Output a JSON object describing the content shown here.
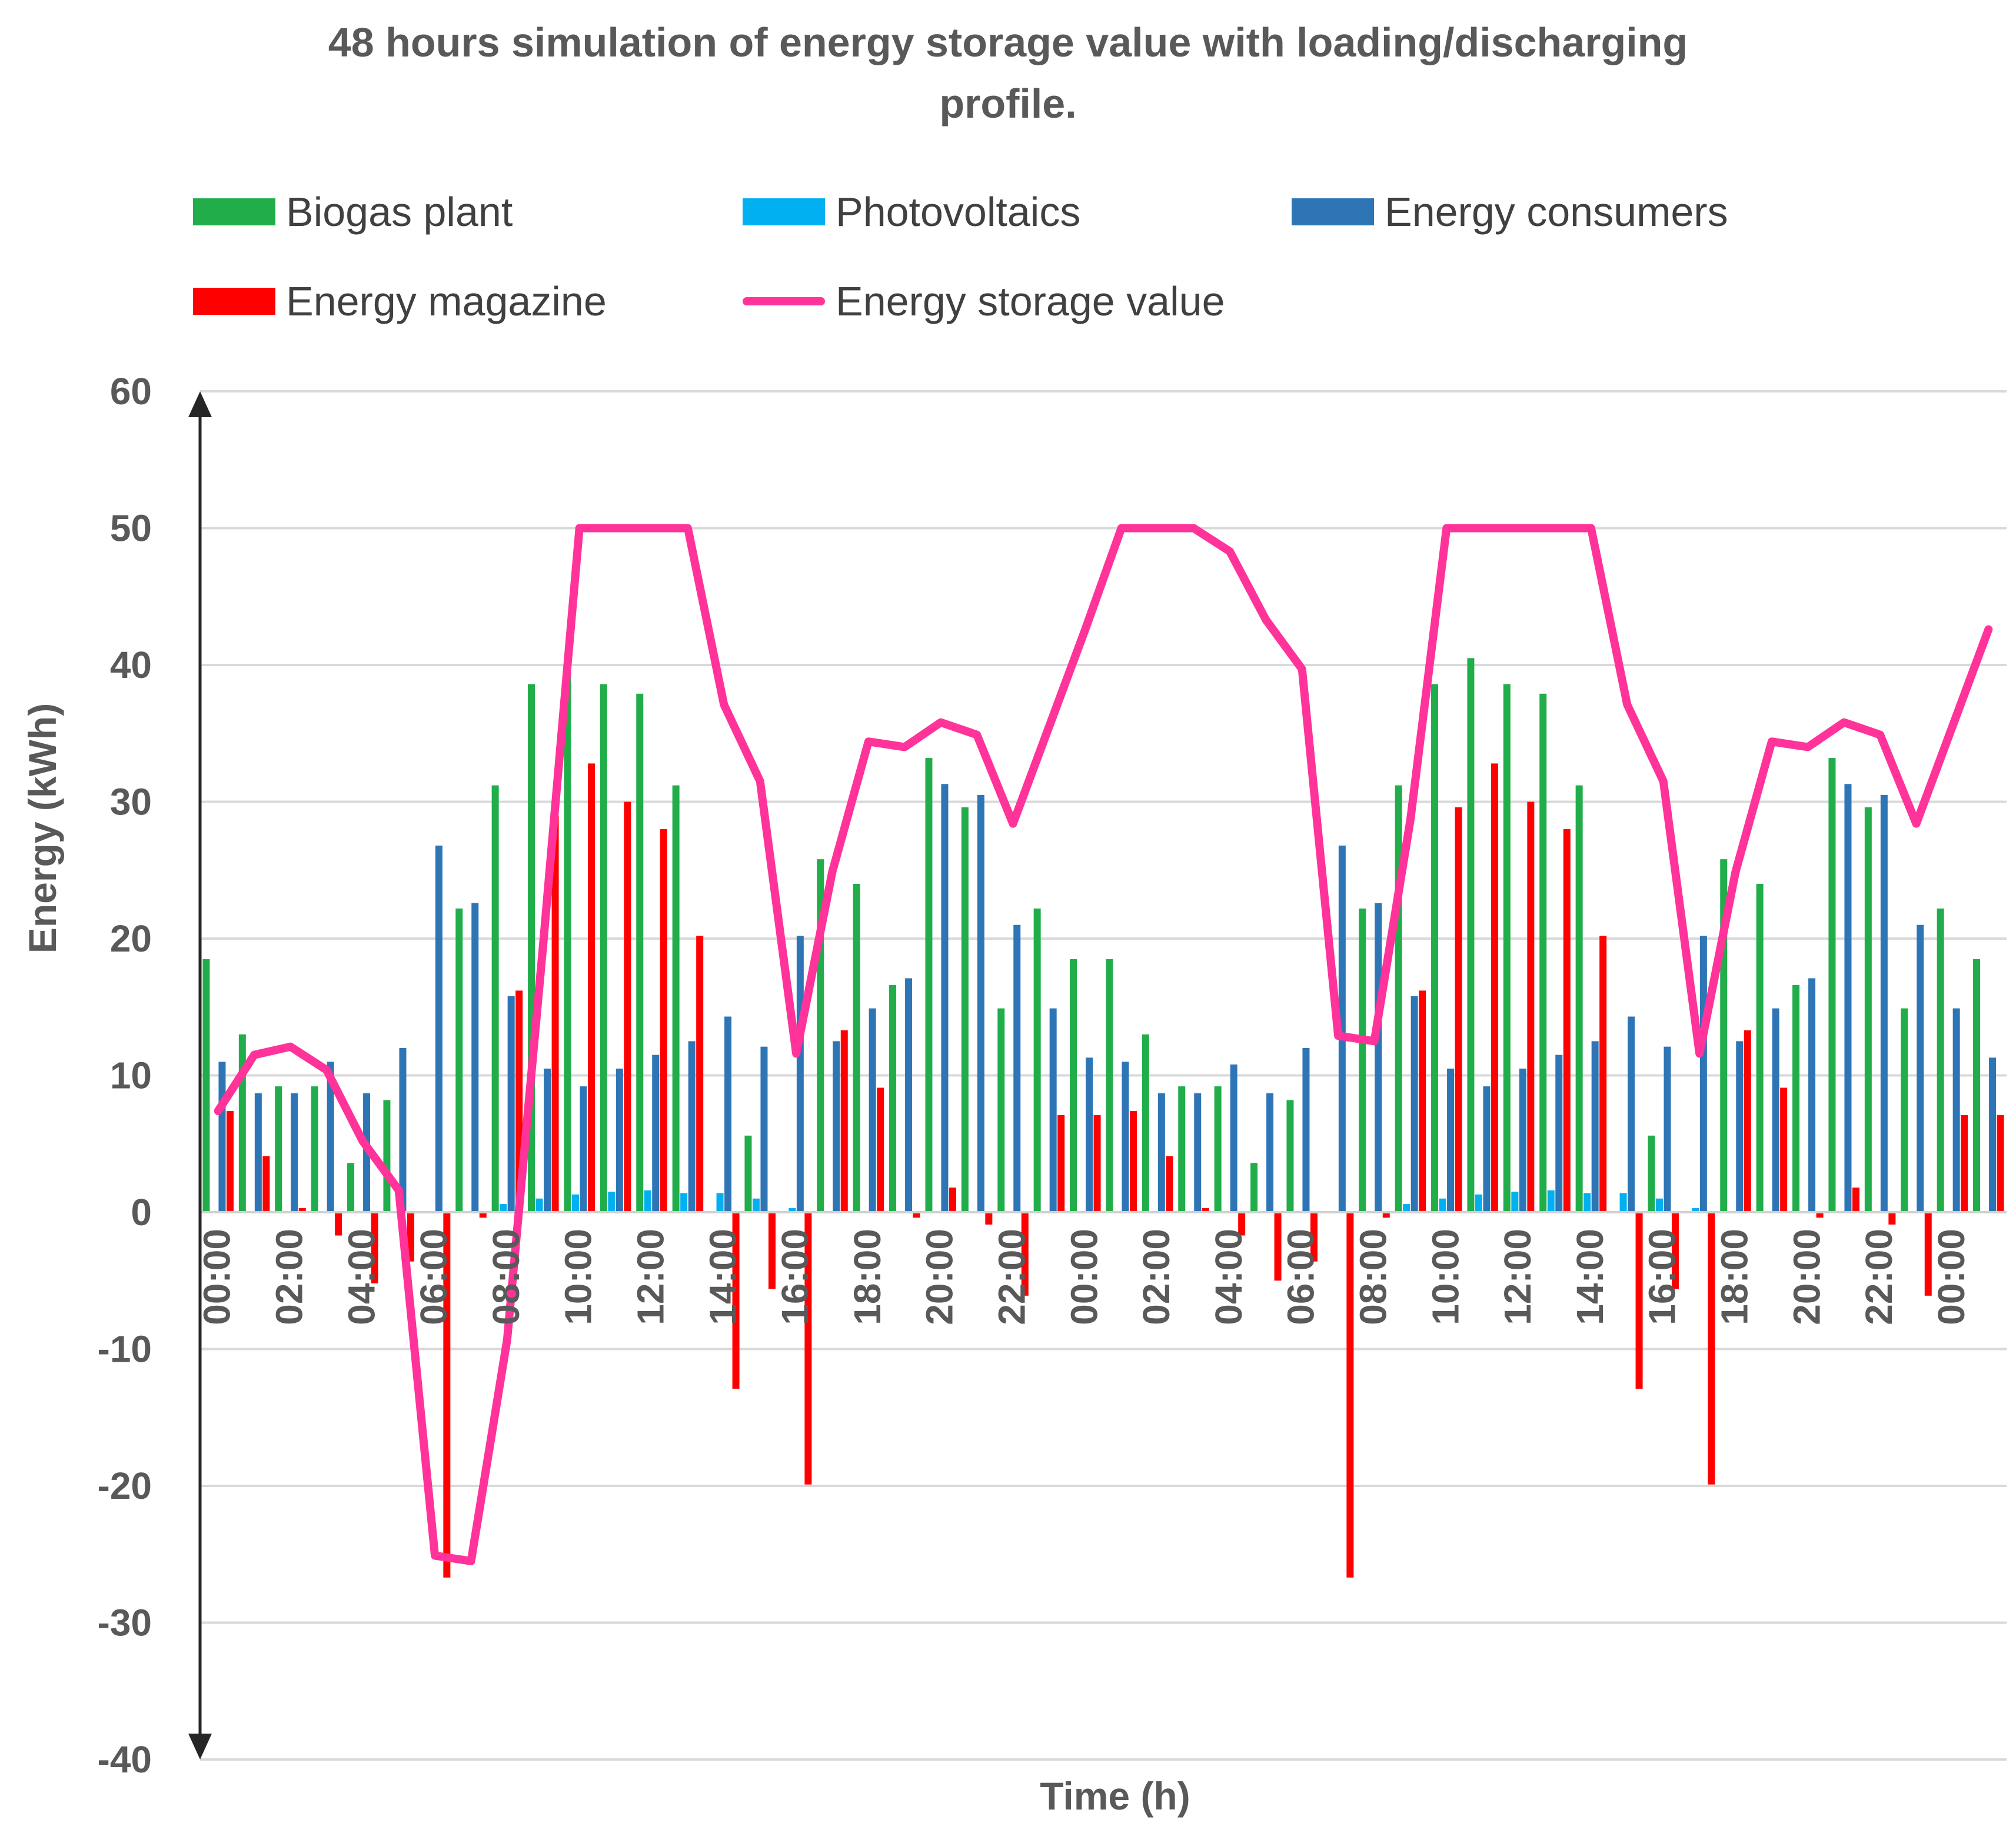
{
  "chart_data": {
    "type": "bar",
    "title_lines": [
      "48 hours simulation of energy storage value with loading/discharging",
      "profile."
    ],
    "xlabel": "Time (h)",
    "ylabel": "Energy (kWh)",
    "ylim": [
      -40,
      60
    ],
    "yticks": [
      -40,
      -30,
      -20,
      -10,
      0,
      10,
      20,
      30,
      40,
      50,
      60
    ],
    "y_tick_labels": [
      "-40",
      "-30",
      "-20",
      "-10",
      "0",
      "10",
      "20",
      "30",
      "40",
      "50",
      "60"
    ],
    "grid": true,
    "legend_position": "top",
    "categories": [
      "00:00",
      "01:00",
      "02:00",
      "03:00",
      "04:00",
      "05:00",
      "06:00",
      "07:00",
      "08:00",
      "09:00",
      "10:00",
      "11:00",
      "12:00",
      "13:00",
      "14:00",
      "15:00",
      "16:00",
      "17:00",
      "18:00",
      "19:00",
      "20:00",
      "21:00",
      "22:00",
      "23:00",
      "00:00",
      "01:00",
      "02:00",
      "03:00",
      "04:00",
      "05:00",
      "06:00",
      "07:00",
      "08:00",
      "09:00",
      "10:00",
      "11:00",
      "12:00",
      "13:00",
      "14:00",
      "15:00",
      "16:00",
      "17:00",
      "18:00",
      "19:00",
      "20:00",
      "21:00",
      "22:00",
      "23:00",
      "00:00",
      "01:00"
    ],
    "x_tick_labels": [
      "00:00",
      "02:00",
      "04:00",
      "06:00",
      "08:00",
      "10:00",
      "12:00",
      "14:00",
      "16:00",
      "18:00",
      "20:00",
      "22:00",
      "00:00",
      "02:00",
      "04:00",
      "06:00",
      "08:00",
      "10:00",
      "12:00",
      "14:00",
      "16:00",
      "18:00",
      "20:00",
      "22:00",
      "00:00"
    ],
    "series": [
      {
        "name": "Biogas plant",
        "kind": "bar",
        "color": "#21ad4a",
        "values": [
          18.5,
          13.0,
          9.2,
          9.2,
          3.6,
          8.2,
          0.0,
          22.2,
          31.2,
          38.6,
          40.2,
          38.6,
          37.9,
          31.2,
          0.0,
          5.6,
          0.0,
          25.8,
          24.0,
          16.6,
          33.2,
          29.6,
          14.9,
          22.2,
          18.5,
          18.5,
          13.0,
          9.2,
          9.2,
          3.6,
          8.2,
          0.0,
          22.2,
          31.2,
          38.6,
          40.5,
          38.6,
          37.9,
          31.2,
          0.0,
          5.6,
          0.0,
          25.8,
          24.0,
          16.6,
          33.2,
          29.6,
          14.9,
          22.2,
          18.5
        ]
      },
      {
        "name": "Photovoltaics",
        "kind": "bar",
        "color": "#00b0f0",
        "values": [
          0,
          0,
          0,
          0,
          0,
          0,
          0,
          0,
          0.6,
          1.0,
          1.3,
          1.5,
          1.6,
          1.4,
          1.4,
          1.0,
          0.3,
          0,
          0,
          0,
          0,
          0,
          0,
          0,
          0,
          0,
          0,
          0,
          0,
          0,
          0,
          0,
          0,
          0.6,
          1.0,
          1.3,
          1.5,
          1.6,
          1.4,
          1.4,
          1.0,
          0.3,
          0,
          0,
          0,
          0,
          0,
          0,
          0,
          0
        ]
      },
      {
        "name": "Energy consumers",
        "kind": "bar",
        "color": "#2e75b6",
        "values": [
          11.0,
          8.7,
          8.7,
          11.0,
          8.7,
          12.0,
          26.8,
          22.6,
          15.8,
          10.5,
          9.2,
          10.5,
          11.5,
          12.5,
          14.3,
          12.1,
          20.2,
          12.5,
          14.9,
          17.1,
          31.3,
          30.5,
          21.0,
          14.9,
          11.3,
          11.0,
          8.7,
          8.7,
          10.8,
          8.7,
          12.0,
          26.8,
          22.6,
          15.8,
          10.5,
          9.2,
          10.5,
          11.5,
          12.5,
          14.3,
          12.1,
          20.2,
          12.5,
          14.9,
          17.1,
          31.3,
          30.5,
          21.0,
          14.9,
          11.3
        ]
      },
      {
        "name": "Energy magazine",
        "kind": "bar",
        "color": "#ff0000",
        "values": [
          7.4,
          4.1,
          0.3,
          -1.7,
          -5.2,
          -3.6,
          -26.7,
          -0.4,
          16.2,
          29.0,
          32.8,
          30.0,
          28.0,
          20.2,
          -12.9,
          -5.6,
          -19.9,
          13.3,
          9.1,
          -0.4,
          1.8,
          -0.9,
          -6.1,
          7.1,
          7.1,
          7.4,
          4.1,
          0.3,
          -1.7,
          -5.0,
          -3.6,
          -26.7,
          -0.4,
          16.2,
          29.6,
          32.8,
          30.0,
          28.0,
          20.2,
          -12.9,
          -5.6,
          -19.9,
          13.3,
          9.1,
          -0.4,
          1.8,
          -0.9,
          -6.1,
          7.1,
          7.1
        ]
      },
      {
        "name": "Energy storage value",
        "kind": "line",
        "color": "#ff3399",
        "values": [
          7.4,
          11.5,
          12.1,
          10.4,
          5.2,
          1.6,
          -25.1,
          -25.5,
          -9.3,
          19.7,
          50.0,
          50.0,
          50.0,
          50.0,
          37.1,
          31.5,
          11.6,
          24.9,
          34.4,
          34.0,
          35.8,
          34.9,
          28.4,
          35.5,
          42.6,
          50.0,
          50.0,
          50.0,
          48.3,
          43.3,
          39.7,
          12.9,
          12.5,
          28.7,
          50.0,
          50.0,
          50.0,
          50.0,
          50.0,
          37.1,
          31.5,
          11.6,
          24.9,
          34.4,
          34.0,
          35.8,
          34.9,
          28.4,
          35.5,
          42.6
        ]
      }
    ]
  }
}
